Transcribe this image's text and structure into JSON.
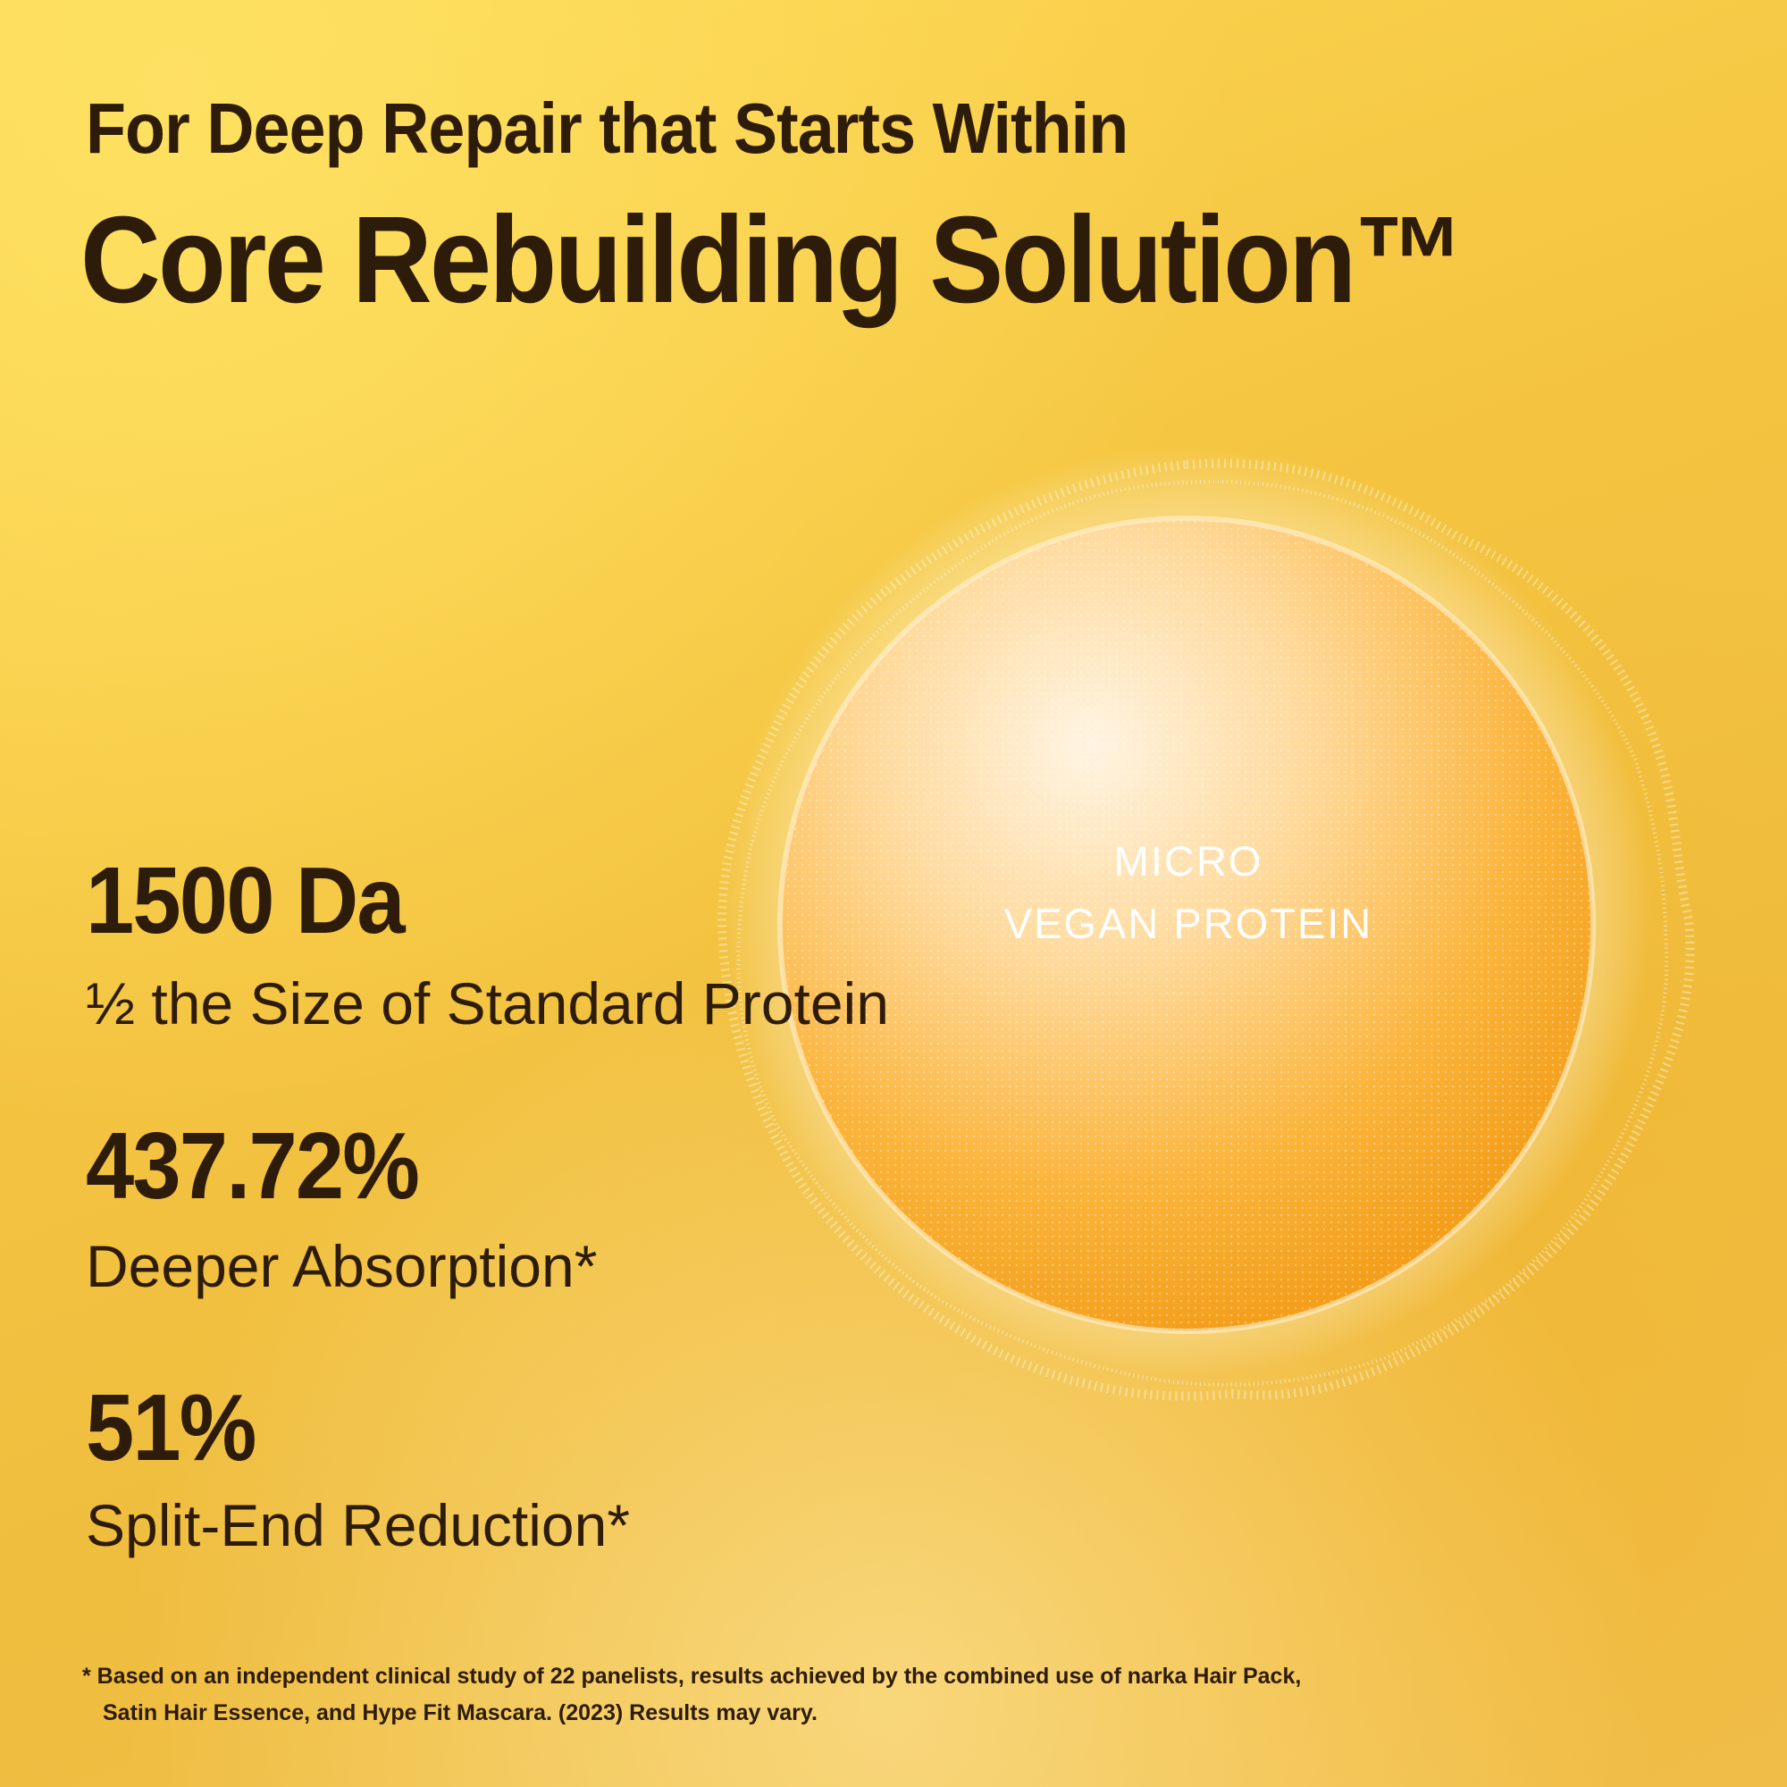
{
  "header": {
    "subtitle": "For Deep Repair that Starts Within",
    "title": "Core Rebuilding Solution™"
  },
  "stats": [
    {
      "value": "1500 Da",
      "label": "½ the Size of Standard Protein"
    },
    {
      "value": "437.72%",
      "label": "Deeper Absorption*"
    },
    {
      "value": "51%",
      "label": "Split-End Reduction*"
    }
  ],
  "sphere": {
    "label_line1": "MICRO",
    "label_line2": "VEGAN PROTEIN"
  },
  "footnote": {
    "line1": "* Based on an independent clinical study of 22 panelists, results achieved by the combined use of narka Hair Pack,",
    "line2": "Satin Hair Essence, and Hype Fit Mascara. (2023) Results may vary."
  },
  "colors": {
    "text": "#2e1c0a",
    "background": "#f4c440",
    "sphere_core": "#f7a91e",
    "sphere_highlight": "#fff0d8"
  }
}
